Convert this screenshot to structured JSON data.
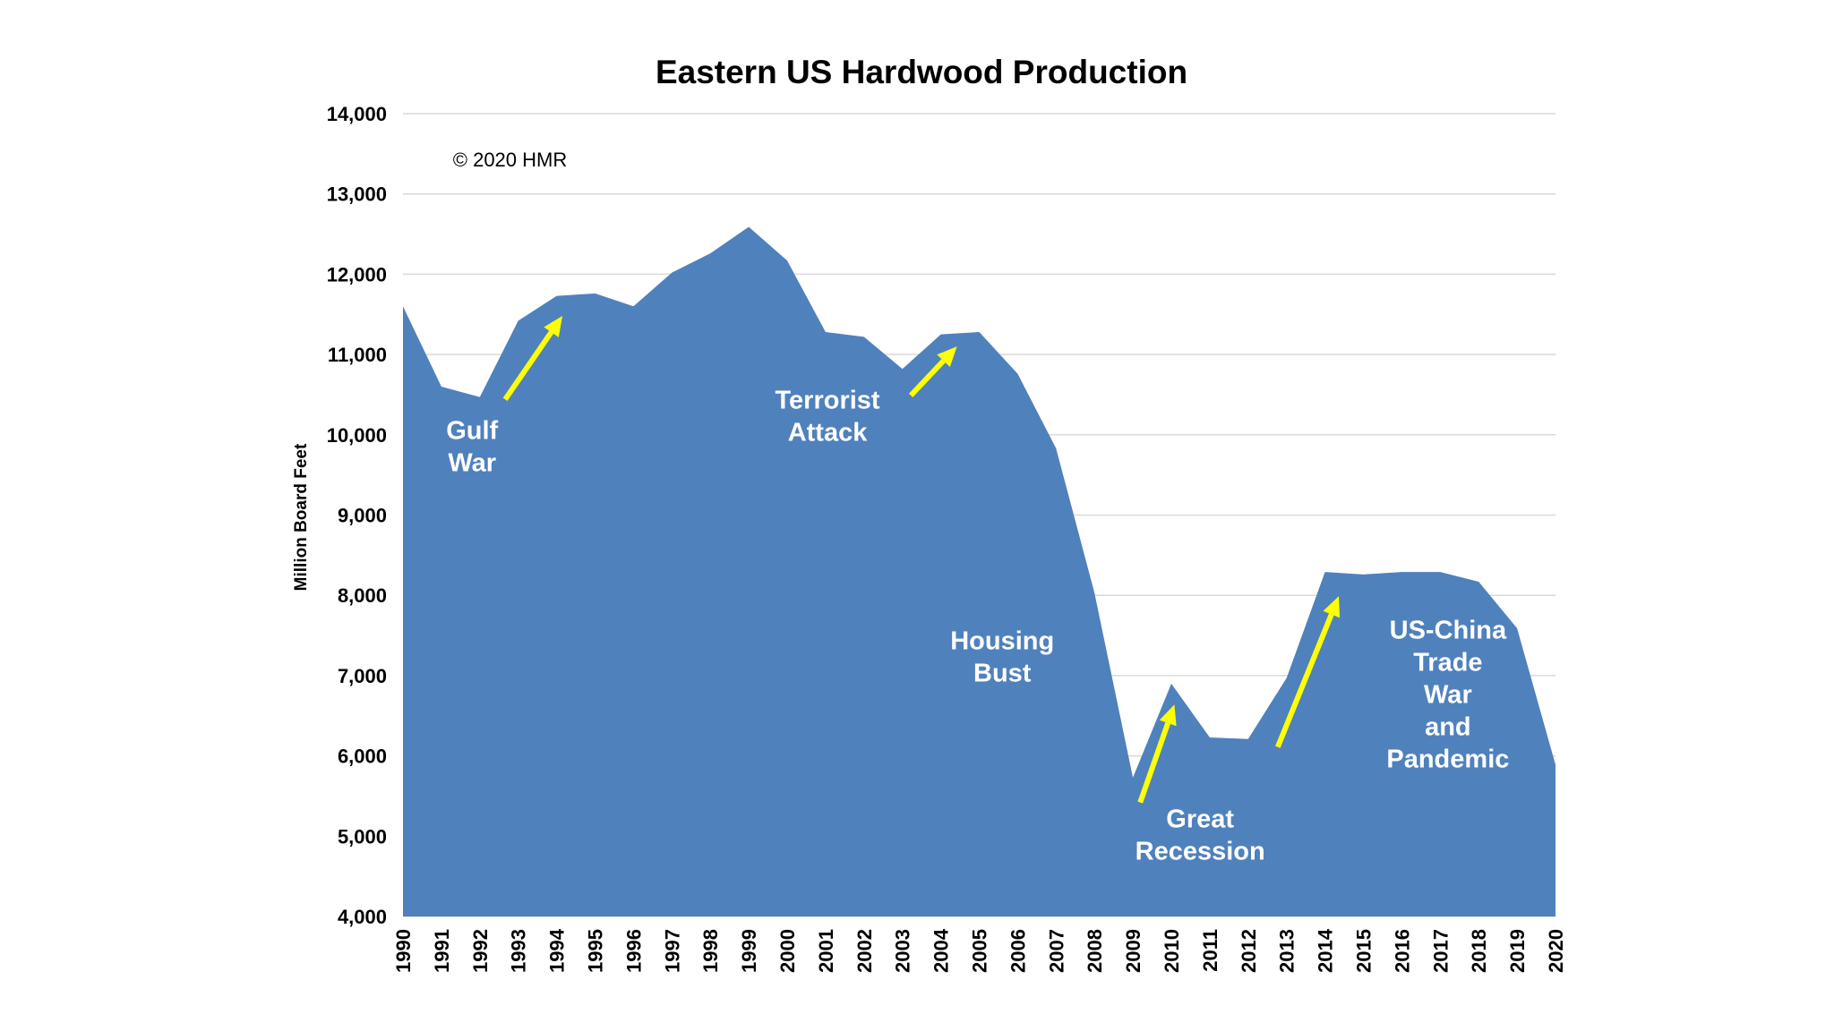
{
  "chart_data": {
    "type": "area",
    "title": "Eastern US Hardwood Production",
    "xlabel": "",
    "ylabel": "Million Board Feet",
    "ylim": [
      4000,
      14000
    ],
    "yticks": [
      4000,
      5000,
      6000,
      7000,
      8000,
      9000,
      10000,
      11000,
      12000,
      13000,
      14000
    ],
    "ytick_labels": [
      "4,000",
      "5,000",
      "6,000",
      "7,000",
      "8,000",
      "9,000",
      "10,000",
      "11,000",
      "12,000",
      "13,000",
      "14,000"
    ],
    "grid": true,
    "x": [
      1990,
      1991,
      1992,
      1993,
      1994,
      1995,
      1996,
      1997,
      1998,
      1999,
      2000,
      2001,
      2002,
      2003,
      2004,
      2005,
      2006,
      2007,
      2008,
      2009,
      2010,
      2011,
      2012,
      2013,
      2014,
      2015,
      2016,
      2017,
      2018,
      2019,
      2020
    ],
    "series": [
      {
        "name": "Eastern US Hardwood Production",
        "color": "#4f81bd",
        "values": [
          11600,
          10600,
          10470,
          11420,
          11730,
          11760,
          11600,
          12020,
          12260,
          12590,
          12170,
          11280,
          11220,
          10820,
          11250,
          11280,
          10760,
          9830,
          8030,
          5730,
          6900,
          6230,
          6210,
          6970,
          8290,
          8260,
          8290,
          8290,
          8170,
          7590,
          5890
        ]
      }
    ],
    "copyright": {
      "text": "© 2020 HMR",
      "x": 1991.3,
      "y": 13430
    },
    "annotations": [
      {
        "lines": [
          "Gulf",
          "War"
        ],
        "x": 1991.8,
        "y": 9860
      },
      {
        "lines": [
          "Terrorist",
          "Attack"
        ],
        "x": 2001.05,
        "y": 10240
      },
      {
        "lines": [
          "Housing",
          "Bust"
        ],
        "x": 2005.6,
        "y": 7240
      },
      {
        "lines": [
          "Great",
          "Recession"
        ],
        "x": 2010.75,
        "y": 5020
      },
      {
        "lines": [
          "US-China",
          "Trade",
          "War",
          "and",
          "Pandemic"
        ],
        "x": 2017.2,
        "y": 6770
      }
    ],
    "arrows": [
      {
        "from": [
          1992.66,
          10440
        ],
        "to": [
          1994.15,
          11480
        ]
      },
      {
        "from": [
          2003.22,
          10490
        ],
        "to": [
          2004.42,
          11100
        ]
      },
      {
        "from": [
          2009.19,
          5420
        ],
        "to": [
          2010.08,
          6640
        ]
      },
      {
        "from": [
          2012.77,
          6110
        ],
        "to": [
          2014.36,
          7990
        ]
      }
    ],
    "arrow_color": "#ffff00"
  }
}
